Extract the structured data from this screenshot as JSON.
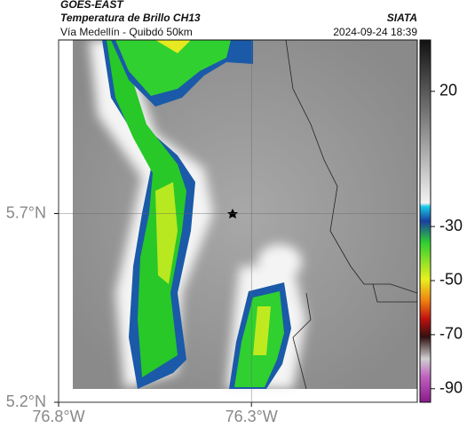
{
  "header": {
    "source": "GOES-EAST",
    "title": "Temperatura de Brillo CH13",
    "subtitle": "Vía Medellín - Quibdó 50km",
    "brand": "SIATA",
    "datetime": "2024-09-24 18:39"
  },
  "map": {
    "xlim": [
      -76.8,
      -75.87
    ],
    "ylim": [
      5.2,
      6.16
    ],
    "xticks": [
      {
        "value": -76.8,
        "label": "76.8°W"
      },
      {
        "value": -76.3,
        "label": "76.3°W"
      }
    ],
    "yticks": [
      {
        "value": 5.2,
        "label": "5.2°N"
      },
      {
        "value": 5.7,
        "label": "5.7°N"
      }
    ]
  },
  "colorbar": {
    "lim": [
      -95,
      39
    ],
    "ticks": [
      20,
      -30,
      -50,
      -70,
      -90
    ]
  }
}
